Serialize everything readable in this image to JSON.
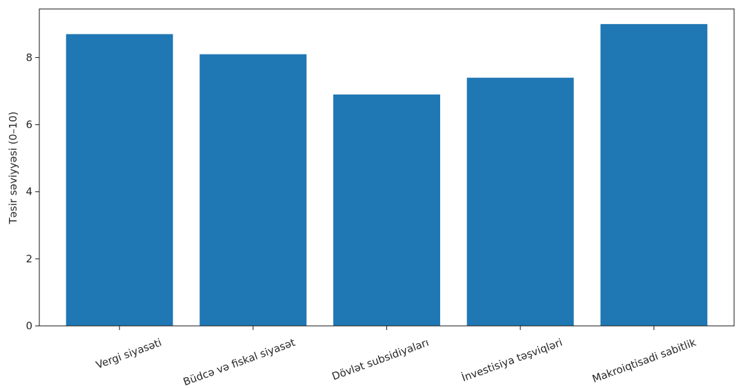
{
  "chart_data": {
    "type": "bar",
    "title": "",
    "xlabel": "",
    "ylabel": "Təsir səviyyəsi (0–10)",
    "categories": [
      "Vergi siyasəti",
      "Büdcə və fiskal siyasət",
      "Dövlət subsidiyaları",
      "İnvestisiya təşviqləri",
      "Makroiqtisadi sabitlik"
    ],
    "values": [
      8.7,
      8.1,
      6.9,
      7.4,
      9.0
    ],
    "ylim": [
      0,
      9.45
    ],
    "yticks": [
      0,
      2,
      4,
      6,
      8
    ],
    "grid": false,
    "legend": "none",
    "bar_color": "#1f77b4",
    "axis_color": "#262626"
  }
}
